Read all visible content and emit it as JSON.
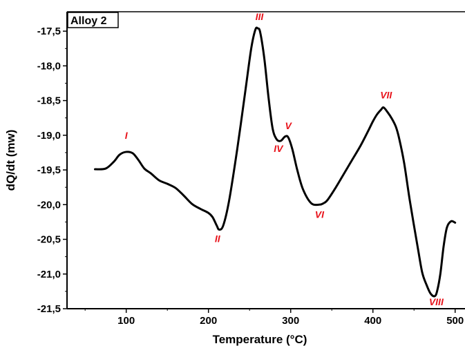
{
  "chart_data": {
    "type": "line",
    "title": "",
    "xlabel": "Temperature  (°C)",
    "ylabel": "dQ/dt (mw)",
    "xlim": [
      28,
      512
    ],
    "ylim": [
      -21.5,
      -17.22
    ],
    "x_ticks": [
      100,
      200,
      300,
      400,
      500
    ],
    "y_ticks": [
      -17.5,
      -18.0,
      -18.5,
      -19.0,
      -19.5,
      -20.0,
      -20.5,
      -21.0,
      -21.5
    ],
    "y_tick_labels": [
      "-17,5",
      "-18,0",
      "-18,5",
      "-19,0",
      "-19,5",
      "-20,0",
      "-20,5",
      "-21,0",
      "-21,5"
    ],
    "legend": {
      "text": "Alloy 2",
      "placement": "top-left"
    },
    "grid": false,
    "series": [
      {
        "color": "#000000",
        "x": [
          62,
          75,
          85,
          92,
          100,
          108,
          115,
          122,
          130,
          140,
          150,
          160,
          170,
          180,
          190,
          200,
          205,
          210,
          213,
          218,
          225,
          235,
          245,
          252,
          257,
          260,
          263,
          268,
          273,
          278,
          283,
          288,
          293,
          297,
          302,
          308,
          315,
          325,
          335,
          340,
          345,
          355,
          365,
          375,
          385,
          395,
          400,
          405,
          410,
          413,
          418,
          423,
          428,
          432,
          438,
          445,
          455,
          460,
          465,
          470,
          475,
          478,
          482,
          486,
          490,
          495,
          500
        ],
        "y": [
          -19.49,
          -19.48,
          -19.38,
          -19.28,
          -19.24,
          -19.26,
          -19.36,
          -19.48,
          -19.55,
          -19.65,
          -19.7,
          -19.76,
          -19.87,
          -19.99,
          -20.06,
          -20.12,
          -20.18,
          -20.3,
          -20.36,
          -20.3,
          -19.95,
          -19.2,
          -18.35,
          -17.75,
          -17.48,
          -17.46,
          -17.52,
          -17.9,
          -18.45,
          -18.9,
          -19.06,
          -19.08,
          -19.02,
          -19.03,
          -19.2,
          -19.5,
          -19.78,
          -19.98,
          -20.0,
          -19.98,
          -19.93,
          -19.75,
          -19.55,
          -19.35,
          -19.15,
          -18.92,
          -18.8,
          -18.7,
          -18.63,
          -18.6,
          -18.67,
          -18.76,
          -18.88,
          -19.05,
          -19.4,
          -19.95,
          -20.65,
          -20.98,
          -21.15,
          -21.28,
          -21.32,
          -21.25,
          -21.0,
          -20.6,
          -20.33,
          -20.24,
          -20.26
        ]
      }
    ],
    "annotations": [
      {
        "text": "I",
        "x": 100,
        "y": -19.0
      },
      {
        "text": "II",
        "x": 211,
        "y": -20.49
      },
      {
        "text": "III",
        "x": 262,
        "y": -17.29
      },
      {
        "text": "IV",
        "x": 285,
        "y": -19.19
      },
      {
        "text": "V",
        "x": 297,
        "y": -18.86
      },
      {
        "text": "VI",
        "x": 335,
        "y": -20.14
      },
      {
        "text": "VII",
        "x": 416,
        "y": -18.42
      },
      {
        "text": "VIII",
        "x": 477,
        "y": -21.4
      }
    ]
  }
}
